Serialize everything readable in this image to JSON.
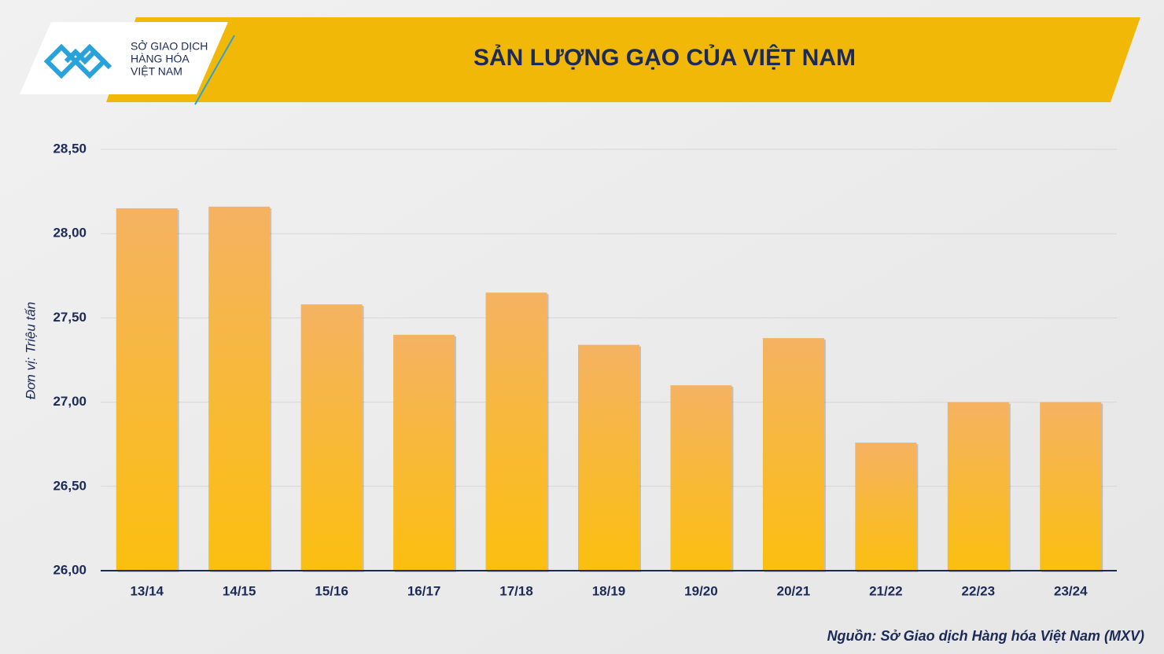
{
  "logo": {
    "lines": [
      "SỞ GIAO DỊCH",
      "HÀNG HÓA",
      "VIỆT NAM"
    ]
  },
  "chart_data": {
    "type": "bar",
    "title": "SẢN LƯỢNG GẠO CỦA VIỆT NAM",
    "y_label": "Đơn vị: Triệu tấn",
    "source": "Nguồn: Sở Giao dịch Hàng hóa Việt Nam (MXV)",
    "categories": [
      "13/14",
      "14/15",
      "15/16",
      "16/17",
      "17/18",
      "18/19",
      "19/20",
      "20/21",
      "21/22",
      "22/23",
      "23/24"
    ],
    "values": [
      28.15,
      28.16,
      27.58,
      27.4,
      27.65,
      27.34,
      27.1,
      27.38,
      26.76,
      27.0,
      27.0
    ],
    "color": "#f5b262",
    "ylim": [
      26,
      28.5
    ],
    "yticks": [
      {
        "value": 26,
        "label": "26,00"
      },
      {
        "value": 26.5,
        "label": "26,50"
      },
      {
        "value": 27,
        "label": "27,00"
      },
      {
        "value": 27.5,
        "label": "27,50"
      },
      {
        "value": 28,
        "label": "28,00"
      },
      {
        "value": 28.5,
        "label": "28,50"
      }
    ],
    "grid": true
  }
}
